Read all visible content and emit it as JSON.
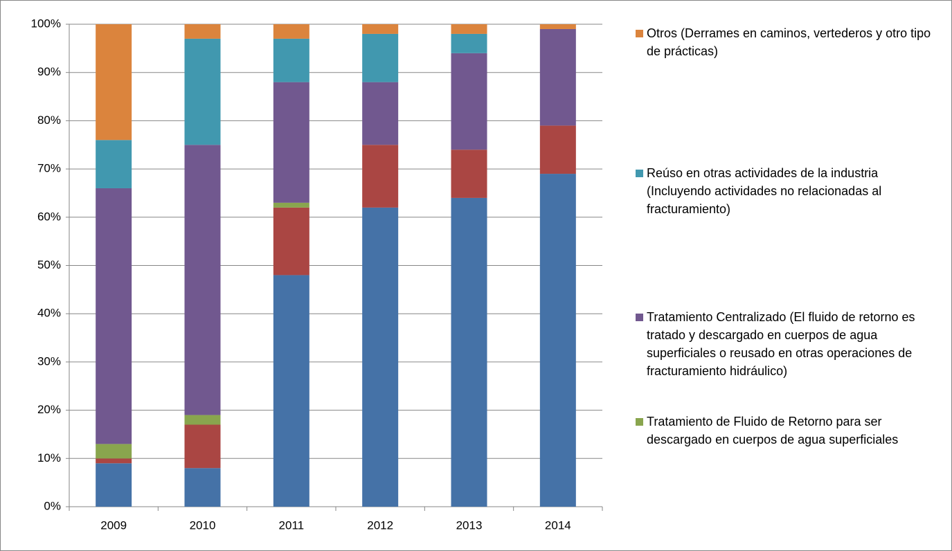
{
  "chart_data": {
    "type": "stacked_bar",
    "categories": [
      "2009",
      "2010",
      "2011",
      "2012",
      "2013",
      "2014"
    ],
    "series": [
      {
        "color": "#4572a7",
        "values": [
          9,
          8,
          48,
          62,
          64,
          69
        ]
      },
      {
        "color": "#aa4643",
        "values": [
          1,
          9,
          14,
          13,
          10,
          10
        ]
      },
      {
        "name": "Tratamiento de Fluido de Retorno para ser descargado en cuerpos de agua superficiales",
        "color": "#89a54e",
        "values": [
          3,
          2,
          1,
          0,
          0,
          0
        ]
      },
      {
        "name": "Tratamiento Centralizado (El fluido de retorno es tratado y descargado en cuerpos de agua  superficiales o reusado en otras operaciones de fracturamiento hidráulico)",
        "color": "#71588f",
        "values": [
          53,
          56,
          25,
          13,
          20,
          20
        ]
      },
      {
        "name": "Reúso en otras actividades de la industria (Incluyendo actividades no relacionadas al fracturamiento)",
        "color": "#4198af",
        "values": [
          10,
          22,
          9,
          10,
          4,
          0
        ]
      },
      {
        "name": "Otros (Derrames en caminos, vertederos y otro tipo de prácticas)",
        "color": "#db843d",
        "values": [
          24,
          3,
          3,
          2,
          2,
          1
        ]
      }
    ],
    "ylim": [
      0,
      100
    ],
    "yticks": [
      {
        "value": 0,
        "label": "0%"
      },
      {
        "value": 10,
        "label": "10%"
      },
      {
        "value": 20,
        "label": "20%"
      },
      {
        "value": 30,
        "label": "30%"
      },
      {
        "value": 40,
        "label": "40%"
      },
      {
        "value": 50,
        "label": "50%"
      },
      {
        "value": 60,
        "label": "60%"
      },
      {
        "value": 70,
        "label": "70%"
      },
      {
        "value": 80,
        "label": "80%"
      },
      {
        "value": 90,
        "label": "90%"
      },
      {
        "value": 100,
        "label": "100%"
      }
    ],
    "grid": true,
    "legend": "right"
  }
}
